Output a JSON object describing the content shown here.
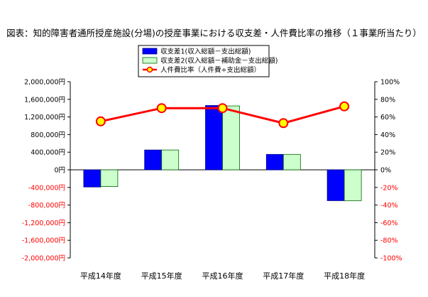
{
  "chart_data": {
    "type": "bar",
    "title": "図表：知的障害者通所授産施設(分場)の授産事業における収支差・人件費比率の推移（１事業所当たり）",
    "categories": [
      "平成14年度",
      "平成15年度",
      "平成16年度",
      "平成17年度",
      "平成18年度"
    ],
    "series": [
      {
        "name": "収支差1(収入総額－支出総額)",
        "type": "bar",
        "axis": "left",
        "color": "#0000ff",
        "values": [
          -390000,
          450000,
          1460000,
          350000,
          -700000
        ]
      },
      {
        "name": "収支差2(収入総額－補助金－支出総額)",
        "type": "bar",
        "axis": "left",
        "color": "#ccffcc",
        "values": [
          -380000,
          450000,
          1450000,
          350000,
          -700000
        ]
      },
      {
        "name": "人件費比率（人件費÷支出総額）",
        "type": "line",
        "axis": "right",
        "color": "#ff0000",
        "values": [
          55,
          70,
          70,
          53,
          72
        ]
      }
    ],
    "left_axis": {
      "ylim": [
        -2000000,
        2000000
      ],
      "ticks": [
        2000000,
        1600000,
        1200000,
        800000,
        400000,
        0,
        -400000,
        -800000,
        -1200000,
        -1600000,
        -2000000
      ],
      "tick_labels": [
        "2,000,000円",
        "1,600,000円",
        "1,200,000円",
        "800,000円",
        "400,000円",
        "0円",
        "-400,000円",
        "-800,000円",
        "-1,200,000円",
        "-1,600,000円",
        "-2,000,000円"
      ]
    },
    "right_axis": {
      "ylim": [
        -100,
        100
      ],
      "ticks": [
        100,
        80,
        60,
        40,
        20,
        0,
        -20,
        -40,
        -60,
        -80,
        -100
      ],
      "tick_labels": [
        "100%",
        "80%",
        "60%",
        "40%",
        "20%",
        "0%",
        "-20%",
        "-40%",
        "-60%",
        "-80%",
        "-100%"
      ]
    },
    "grid": false,
    "legend_position": "top-center"
  }
}
